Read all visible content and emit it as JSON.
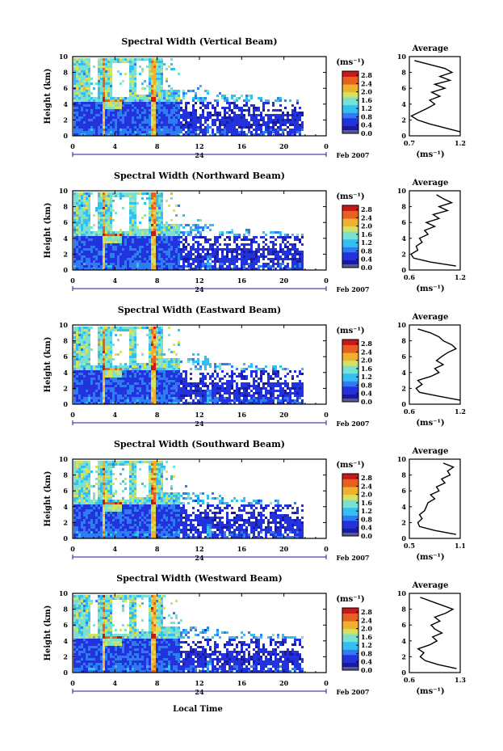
{
  "figure": {
    "xlabel": "Local Time",
    "date_label": "Feb 2007",
    "day_label": "24",
    "colorbar_unit": "(ms⁻¹)",
    "average_title": "Average",
    "average_unit": "(ms⁻¹)",
    "colors": {
      "scale": [
        "#1a1aa0",
        "#2233dd",
        "#2f7cf0",
        "#33c0f0",
        "#7ae0d0",
        "#d8e060",
        "#f0b030",
        "#e86020",
        "#c81818"
      ],
      "below_range": "#5a5a8a"
    }
  },
  "chart_data": [
    {
      "type": "heatmap",
      "title": "Spectral Width (Vertical Beam)",
      "ylabel": "Height (km)",
      "xlim": [
        0,
        24
      ],
      "ylim": [
        0,
        10
      ],
      "xticks": [
        "0",
        "4",
        "8",
        "12",
        "16",
        "20",
        "0"
      ],
      "yticks": [
        "0",
        "2",
        "4",
        "6",
        "8",
        "10"
      ],
      "colorbar": {
        "ticks": [
          "0.0",
          "0.4",
          "0.8",
          "1.2",
          "1.6",
          "2.0",
          "2.4",
          "2.8"
        ],
        "range": [
          0,
          3.0
        ]
      },
      "average": {
        "xlim": [
          0.7,
          1.2
        ],
        "xticks": [
          "0.7",
          "1.2"
        ],
        "heights": [
          0.5,
          1,
          1.5,
          2,
          2.5,
          3,
          3.5,
          4,
          4.5,
          5,
          5.5,
          6,
          6.5,
          7,
          7.5,
          8,
          8.5,
          9,
          9.5
        ],
        "values": [
          1.2,
          1.05,
          0.9,
          0.78,
          0.72,
          0.8,
          0.88,
          0.95,
          0.9,
          1.0,
          0.92,
          1.05,
          0.95,
          1.1,
          1.0,
          1.12,
          1.05,
          0.9,
          0.75
        ]
      }
    },
    {
      "type": "heatmap",
      "title": "Spectral Width (Northward Beam)",
      "ylabel": "Height (km)",
      "xlim": [
        0,
        24
      ],
      "ylim": [
        0,
        10
      ],
      "xticks": [
        "0",
        "4",
        "8",
        "12",
        "16",
        "20",
        "0"
      ],
      "yticks": [
        "0",
        "2",
        "4",
        "6",
        "8",
        "10"
      ],
      "colorbar": {
        "ticks": [
          "0.0",
          "0.4",
          "0.8",
          "1.2",
          "1.6",
          "2.0",
          "2.4",
          "2.8"
        ],
        "range": [
          0,
          3.0
        ]
      },
      "average": {
        "xlim": [
          0.6,
          1.2
        ],
        "xticks": [
          "0.6",
          "1.2"
        ],
        "heights": [
          0.5,
          1,
          1.5,
          2,
          2.5,
          3,
          3.5,
          4,
          4.5,
          5,
          5.5,
          6,
          6.5,
          7,
          7.5,
          8,
          8.5,
          9,
          9.5
        ],
        "values": [
          1.15,
          0.85,
          0.65,
          0.62,
          0.7,
          0.68,
          0.75,
          0.72,
          0.82,
          0.78,
          0.9,
          0.8,
          0.95,
          0.88,
          1.05,
          0.95,
          1.1,
          1.0,
          0.92
        ]
      }
    },
    {
      "type": "heatmap",
      "title": "Spectral Width (Eastward Beam)",
      "ylabel": "Height (km)",
      "xlim": [
        0,
        24
      ],
      "ylim": [
        0,
        10
      ],
      "xticks": [
        "0",
        "4",
        "8",
        "12",
        "16",
        "20",
        "0"
      ],
      "yticks": [
        "0",
        "2",
        "4",
        "6",
        "8",
        "10"
      ],
      "colorbar": {
        "ticks": [
          "0.0",
          "0.4",
          "0.8",
          "1.2",
          "1.6",
          "2.0",
          "2.4",
          "2.8"
        ],
        "range": [
          0,
          3.0
        ]
      },
      "average": {
        "xlim": [
          0.6,
          1.2
        ],
        "xticks": [
          "0.6",
          "1.2"
        ],
        "heights": [
          0.5,
          1,
          1.5,
          2,
          2.5,
          3,
          3.5,
          4,
          4.5,
          5,
          5.5,
          6,
          6.5,
          7,
          7.5,
          8,
          8.5,
          9,
          9.5
        ],
        "values": [
          1.2,
          0.95,
          0.72,
          0.68,
          0.75,
          0.7,
          0.85,
          0.95,
          0.9,
          1.0,
          0.92,
          0.98,
          1.05,
          1.15,
          1.1,
          1.0,
          0.95,
          0.85,
          0.7
        ]
      }
    },
    {
      "type": "heatmap",
      "title": "Spectral Width (Southward Beam)",
      "ylabel": "Height (km)",
      "xlim": [
        0,
        24
      ],
      "ylim": [
        0,
        10
      ],
      "xticks": [
        "0",
        "4",
        "8",
        "12",
        "16",
        "20",
        "0"
      ],
      "yticks": [
        "0",
        "2",
        "4",
        "6",
        "8",
        "10"
      ],
      "colorbar": {
        "ticks": [
          "0.0",
          "0.4",
          "0.8",
          "1.2",
          "1.6",
          "2.0",
          "2.4",
          "2.8"
        ],
        "range": [
          0,
          3.0
        ]
      },
      "average": {
        "xlim": [
          0.5,
          1.1
        ],
        "xticks": [
          "0.5",
          "1.1"
        ],
        "heights": [
          0.5,
          1,
          1.5,
          2,
          2.5,
          3,
          3.5,
          4,
          4.5,
          5,
          5.5,
          6,
          6.5,
          7,
          7.5,
          8,
          8.5,
          9,
          9.5
        ],
        "values": [
          1.05,
          0.8,
          0.62,
          0.6,
          0.65,
          0.62,
          0.68,
          0.7,
          0.72,
          0.8,
          0.75,
          0.85,
          0.82,
          0.92,
          0.88,
          0.98,
          0.95,
          1.02,
          0.9
        ]
      }
    },
    {
      "type": "heatmap",
      "title": "Spectral Width (Westward Beam)",
      "ylabel": "Height (km)",
      "xlim": [
        0,
        24
      ],
      "ylim": [
        0,
        10
      ],
      "xticks": [
        "0",
        "4",
        "8",
        "12",
        "16",
        "20",
        "0"
      ],
      "yticks": [
        "0",
        "2",
        "4",
        "6",
        "8",
        "10"
      ],
      "colorbar": {
        "ticks": [
          "0.0",
          "0.4",
          "0.8",
          "1.2",
          "1.6",
          "2.0",
          "2.4",
          "2.8"
        ],
        "range": [
          0,
          3.0
        ]
      },
      "average": {
        "xlim": [
          0.6,
          1.3
        ],
        "xticks": [
          "0.6",
          "1.3"
        ],
        "heights": [
          0.5,
          1,
          1.5,
          2,
          2.5,
          3,
          3.5,
          4,
          4.5,
          5,
          5.5,
          6,
          6.5,
          7,
          7.5,
          8,
          8.5,
          9,
          9.5
        ],
        "values": [
          1.25,
          1.0,
          0.82,
          0.75,
          0.8,
          0.72,
          0.88,
          0.98,
          0.92,
          1.05,
          0.95,
          0.9,
          1.02,
          0.95,
          1.1,
          1.2,
          1.05,
          0.9,
          0.75
        ]
      }
    }
  ]
}
